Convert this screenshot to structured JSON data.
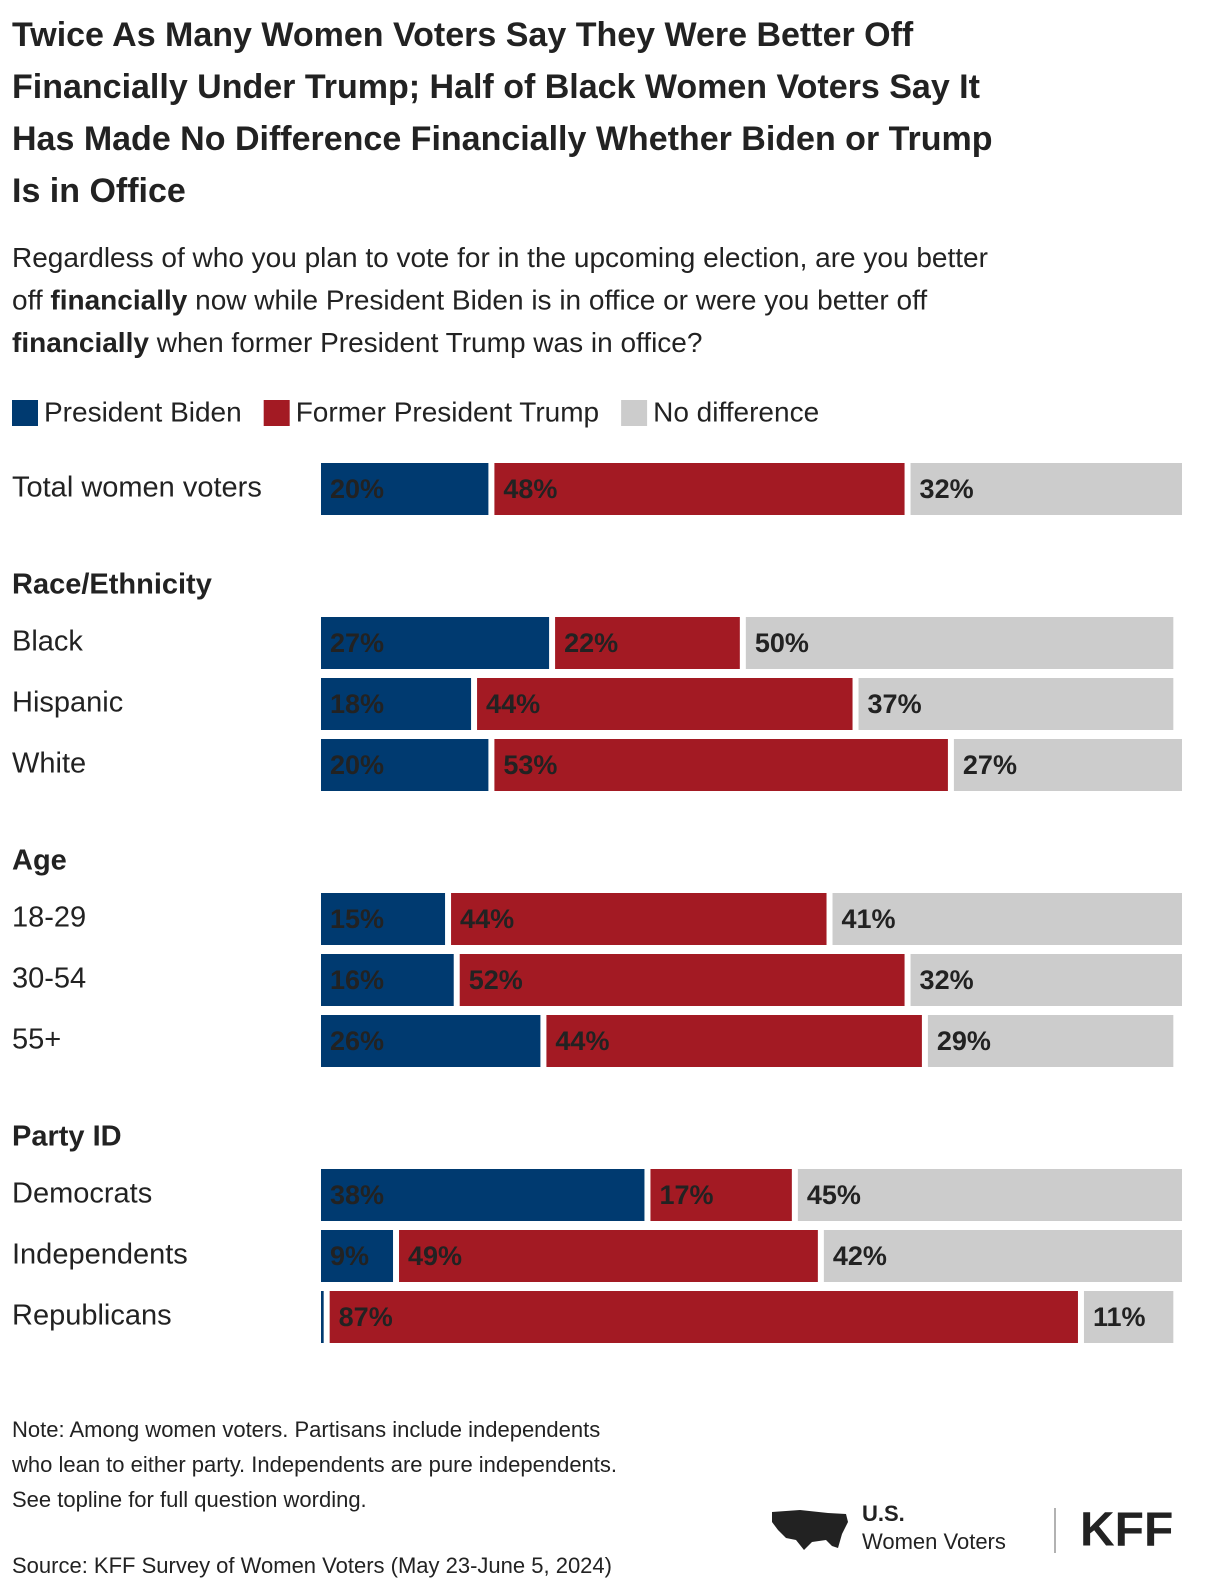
{
  "chart_data": {
    "type": "stacked-bar",
    "title": [
      "Twice As Many Women Voters Say They Were Better Off",
      "Financially Under Trump; Half of Black Women Voters Say It",
      "Has Made No Difference Financially Whether Biden or Trump",
      "Is in Office"
    ],
    "subtitle": [
      [
        {
          "text": "Regardless of who you plan to vote for in the upcoming election, are you better",
          "bold": false
        }
      ],
      [
        {
          "text": "off ",
          "bold": false
        },
        {
          "text": "financially",
          "bold": true
        },
        {
          "text": " now while President Biden is in office or were you better off",
          "bold": false
        }
      ],
      [
        {
          "text": "financially",
          "bold": true
        },
        {
          "text": " when former President Trump was in office?",
          "bold": false
        }
      ]
    ],
    "categories": [
      "Total women voters",
      "Race/Ethnicity",
      "Black",
      "Hispanic",
      "White",
      "Age",
      "18-29",
      "30-54",
      "55+",
      "Party ID",
      "Democrats",
      "Independents",
      "Republicans"
    ],
    "series": [
      {
        "name": "President Biden",
        "color": "#003a70",
        "label_color": "#ffffff",
        "values": [
          20,
          null,
          27,
          18,
          20,
          null,
          15,
          16,
          26,
          null,
          38,
          9,
          1
        ],
        "value_labels": [
          "20%",
          null,
          "27%",
          "18%",
          "20%",
          null,
          "15%",
          "16%",
          "26%",
          null,
          "38%",
          "9%",
          null
        ]
      },
      {
        "name": "Former President Trump",
        "color": "#a31a23",
        "label_color": "#ffffff",
        "values": [
          48,
          null,
          22,
          44,
          53,
          null,
          44,
          52,
          44,
          null,
          17,
          49,
          87
        ],
        "value_labels": [
          "48%",
          null,
          "22%",
          "44%",
          "53%",
          null,
          "44%",
          "52%",
          "44%",
          null,
          "17%",
          "49%",
          "87%"
        ]
      },
      {
        "name": "No difference",
        "color": "#cccccc",
        "label_color": "#1a1a1a",
        "values": [
          32,
          null,
          50,
          37,
          27,
          null,
          41,
          32,
          29,
          null,
          45,
          42,
          11
        ],
        "value_labels": [
          "32%",
          null,
          "50%",
          "37%",
          "27%",
          null,
          "41%",
          "32%",
          "29%",
          null,
          "45%",
          "42%",
          "11%"
        ]
      }
    ],
    "xlim": [
      0,
      100
    ],
    "note": [
      "Note: Among women voters. Partisans include independents",
      "who lean to either party. Independents are pure independents.",
      "See topline for full question wording."
    ],
    "source": "Source: KFF Survey of Women Voters (May 23-June 5, 2024)",
    "badge": [
      "U.S.",
      "Women Voters"
    ],
    "logo": "KFF"
  }
}
